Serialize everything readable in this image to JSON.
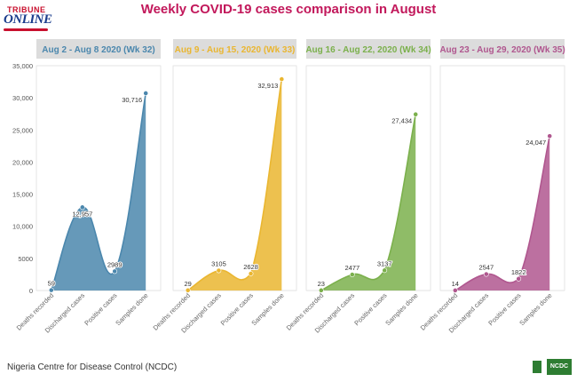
{
  "title": "Weekly COVID-19 cases comparison in August",
  "logo": {
    "line1": "TRIBUNE",
    "line2": "ONLINE"
  },
  "footer": {
    "source": "Nigeria Centre for Disease Control (NCDC)",
    "badge": "NCDC"
  },
  "colors": [
    "#4b87ad",
    "#eab630",
    "#7bb04c",
    "#b0578f"
  ],
  "chart_data": [
    {
      "type": "area",
      "title": "Aug 2 - Aug 8 2020 (Wk 32)",
      "categories": [
        "Deaths recorded",
        "Discharged cases",
        "Positive cases",
        "Samples done"
      ],
      "values": [
        59,
        12957,
        2989,
        30716
      ],
      "value_labels": [
        "59",
        "12,957",
        "2989",
        "30,716"
      ],
      "ylim": [
        0,
        35000
      ],
      "yticks": [
        0,
        5000,
        10000,
        15000,
        20000,
        25000,
        30000,
        35000
      ],
      "ytick_labels": [
        "0",
        "5000",
        "10,000",
        "15,000",
        "20,000",
        "25,000",
        "30,000",
        "35,000"
      ],
      "color": "#4b87ad"
    },
    {
      "type": "area",
      "title": "Aug 9 - Aug 15, 2020 (Wk 33)",
      "categories": [
        "Deaths recorded",
        "Discharged cases",
        "Positive cases",
        "Samples done"
      ],
      "values": [
        29,
        3105,
        2628,
        32913
      ],
      "value_labels": [
        "29",
        "3105",
        "2628",
        "32,913"
      ],
      "ylim": [
        0,
        35000
      ],
      "color": "#eab630"
    },
    {
      "type": "area",
      "title": "Aug 16 - Aug 22, 2020 (Wk 34)",
      "categories": [
        "Deaths recorded",
        "Discharged cases",
        "Positive cases",
        "Samples done"
      ],
      "values": [
        23,
        2477,
        3137,
        27434
      ],
      "value_labels": [
        "23",
        "2477",
        "3137",
        "27,434"
      ],
      "ylim": [
        0,
        35000
      ],
      "color": "#7bb04c"
    },
    {
      "type": "area",
      "title": "Aug 23 - Aug 29, 2020 (Wk 35)",
      "categories": [
        "Deaths recorded",
        "Discharged cases",
        "Positive cases",
        "Samples done"
      ],
      "values": [
        14,
        2547,
        1822,
        24047
      ],
      "value_labels": [
        "14",
        "2547",
        "1822",
        "24,047"
      ],
      "ylim": [
        0,
        35000
      ],
      "color": "#b0578f"
    }
  ]
}
